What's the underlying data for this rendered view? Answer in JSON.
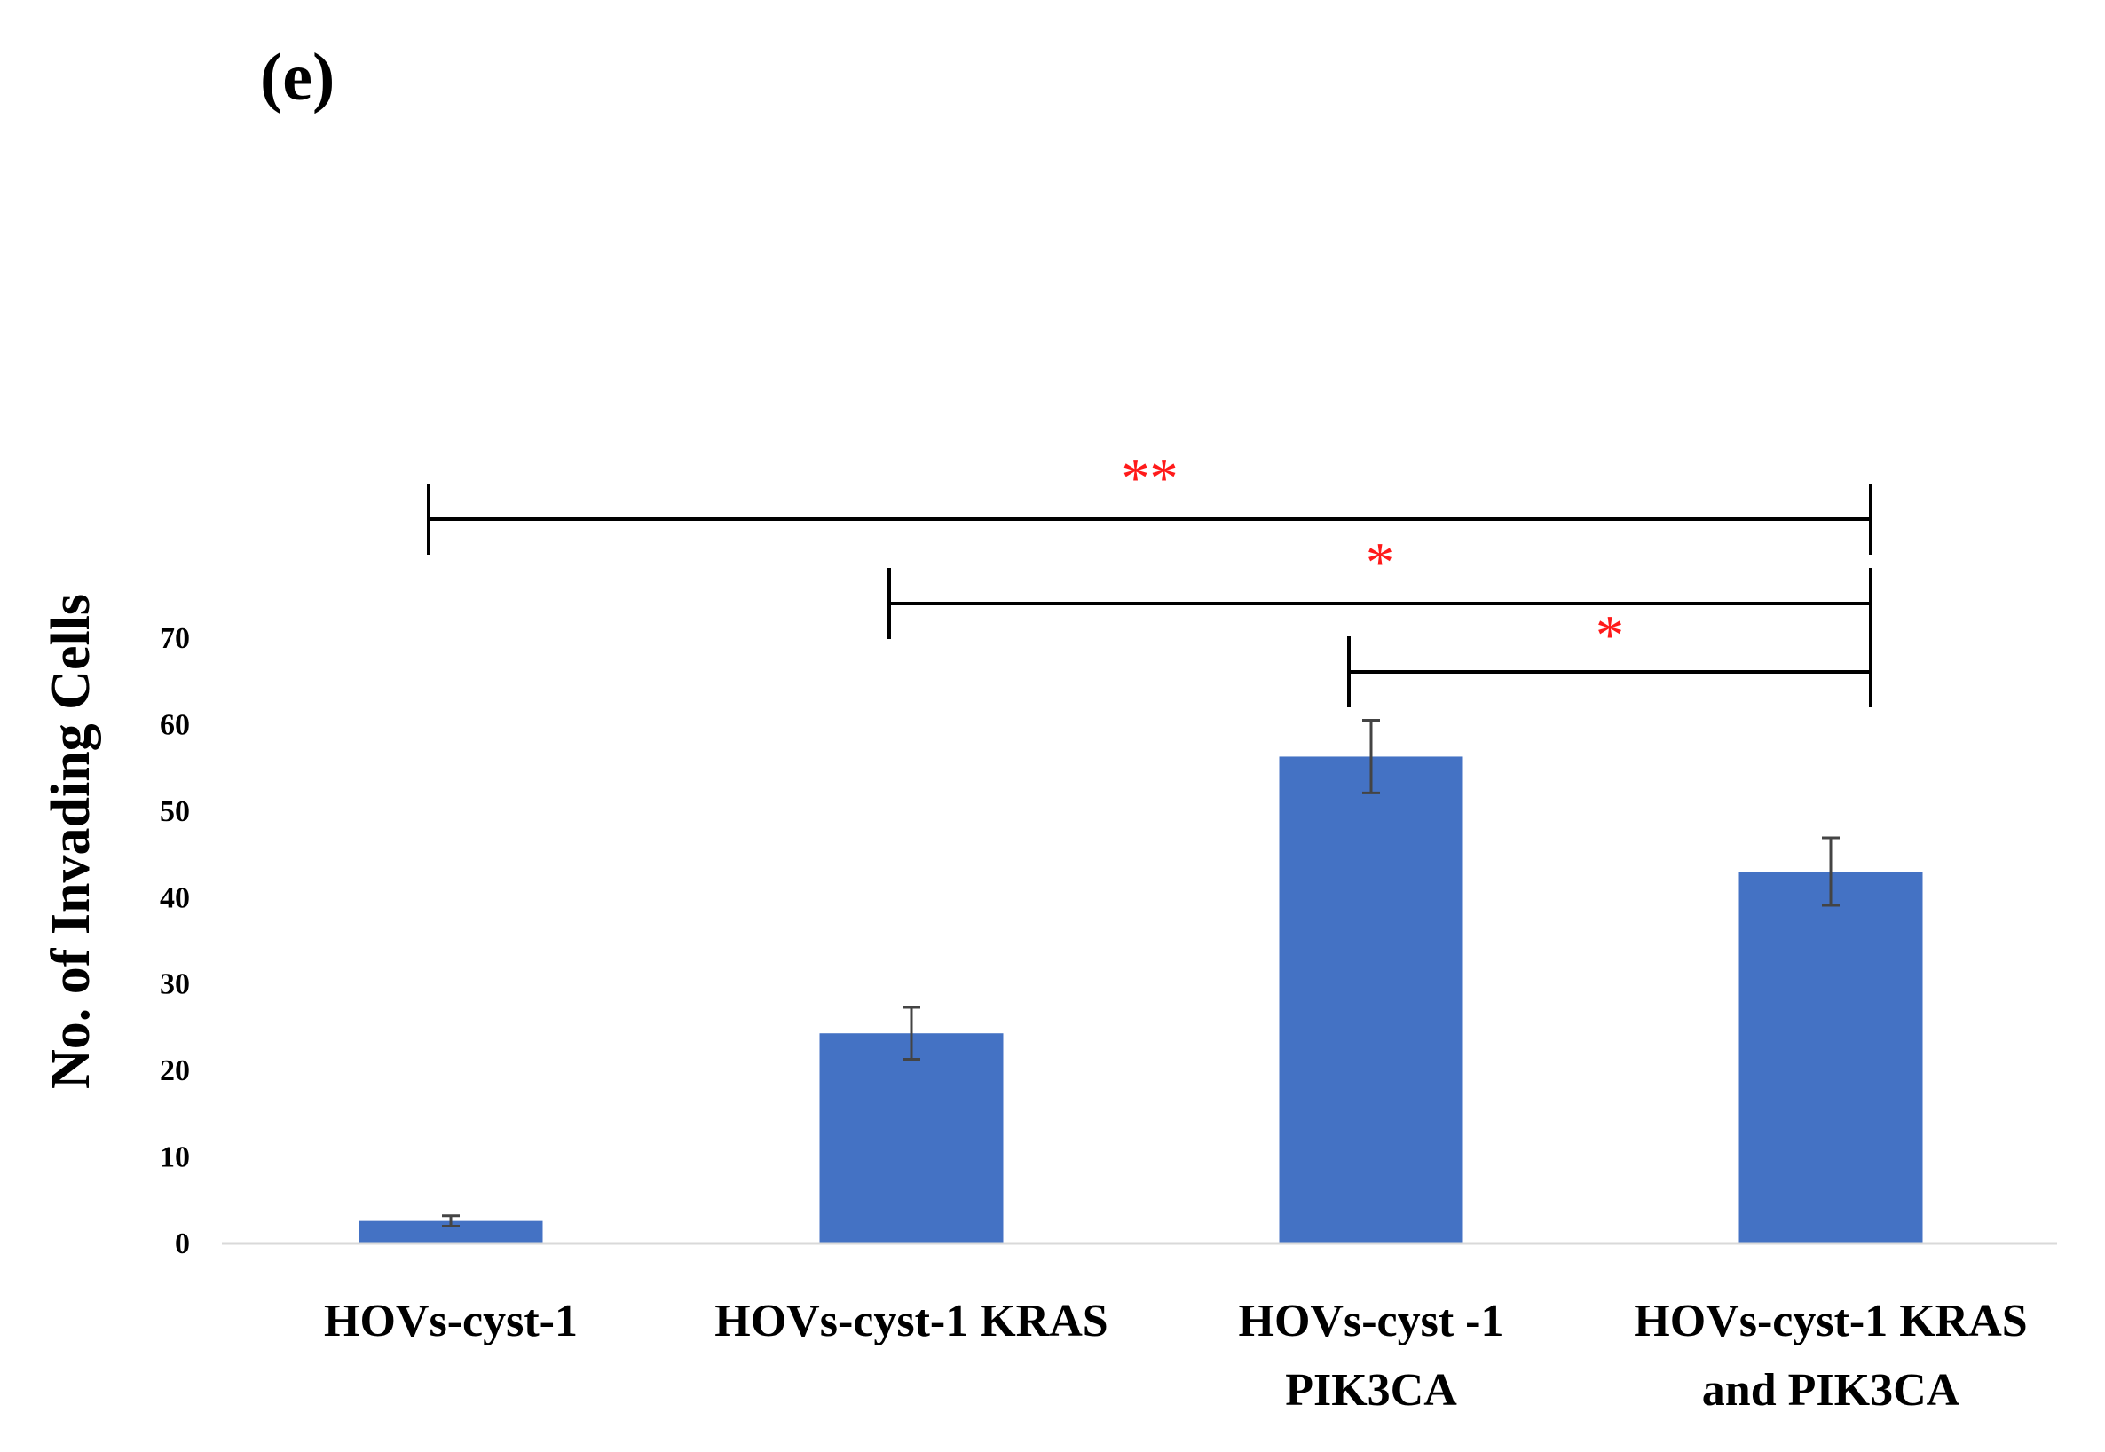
{
  "panel_label": "(e)",
  "chart_data": {
    "type": "bar",
    "title": "",
    "xlabel": "",
    "ylabel": "No. of Invading Cells",
    "categories": [
      [
        "HOVs-cyst-1"
      ],
      [
        "HOVs-cyst-1 KRAS"
      ],
      [
        "HOVs-cyst -1",
        "PIK3CA"
      ],
      [
        "HOVs-cyst-1 KRAS",
        "and PIK3CA"
      ]
    ],
    "values": [
      2.5,
      24.2,
      56.2,
      42.9
    ],
    "error": [
      0.6,
      3.0,
      4.2,
      3.9
    ],
    "ylim": [
      0,
      70
    ],
    "yticks": [
      0,
      10,
      20,
      30,
      40,
      50,
      60,
      70
    ],
    "bar_color": "#4472c4",
    "error_color": "#444444",
    "grid": false,
    "significance": [
      {
        "from": 0,
        "to": 3,
        "label": "**"
      },
      {
        "from": 1,
        "to": 3,
        "label": "*"
      },
      {
        "from": 2,
        "to": 3,
        "label": "*"
      }
    ],
    "significance_color": "#ff1a1a"
  }
}
